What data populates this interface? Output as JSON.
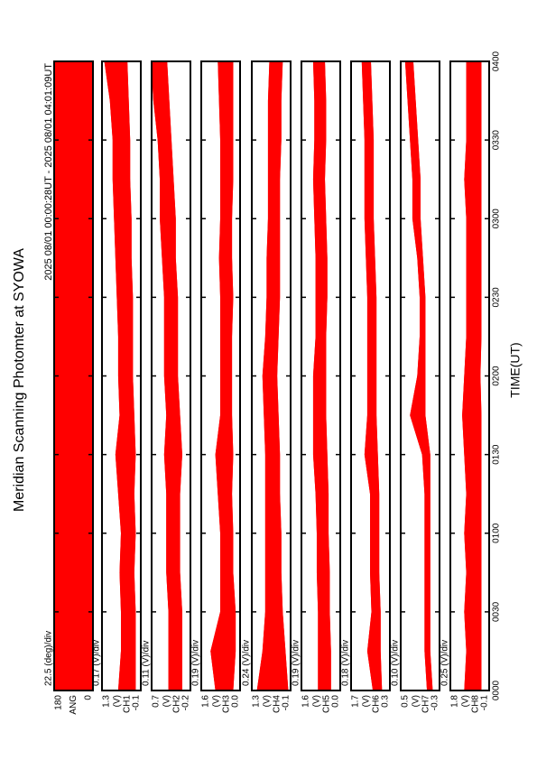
{
  "title": "Meridian Scanning Photomter at SYOWA",
  "subtitle": "2025 08/01 00:00:28UT - 2025 08/01 04:01:09UT",
  "xaxis": {
    "label": "TIME(UT)",
    "xlim": [
      0,
      240
    ],
    "xticks": [
      {
        "value": 0,
        "label": "0000"
      },
      {
        "value": 30,
        "label": "0030"
      },
      {
        "value": 60,
        "label": "0100"
      },
      {
        "value": 90,
        "label": "0130"
      },
      {
        "value": 120,
        "label": "0200"
      },
      {
        "value": 150,
        "label": "0230"
      },
      {
        "value": 180,
        "label": "0300"
      },
      {
        "value": 210,
        "label": "0330"
      },
      {
        "value": 240,
        "label": "0400"
      }
    ]
  },
  "chart_data": [
    {
      "type": "band",
      "ylabel": "ANG",
      "scale_label": "22.5 (deg)/div",
      "color": "#ff0000",
      "ylim": [
        0,
        180
      ],
      "yticks": [
        0,
        180
      ],
      "x": [
        0,
        240
      ],
      "low": [
        0,
        0
      ],
      "high": [
        180,
        180
      ]
    },
    {
      "type": "band",
      "ylabel": "CH1",
      "unit": "(V)",
      "scale_label": "0.17 (V)/div",
      "color": "#ff0000",
      "ylim": [
        -0.1,
        1.3
      ],
      "yticks": [
        -0.1,
        1.3
      ],
      "x": [
        0,
        15,
        30,
        45,
        60,
        75,
        90,
        105,
        120,
        135,
        150,
        165,
        180,
        195,
        210,
        225,
        240
      ],
      "low": [
        0.1,
        0.1,
        0.1,
        0.15,
        0.1,
        0.15,
        0.1,
        0.15,
        0.2,
        0.2,
        0.2,
        0.25,
        0.25,
        0.3,
        0.3,
        0.35,
        0.4
      ],
      "high": [
        0.7,
        0.6,
        0.6,
        0.65,
        0.6,
        0.7,
        0.8,
        0.65,
        0.7,
        0.7,
        0.75,
        0.8,
        0.85,
        0.9,
        0.9,
        1.0,
        1.2
      ]
    },
    {
      "type": "band",
      "ylabel": "CH2",
      "unit": "(V)",
      "scale_label": "0.11 (V)/div",
      "color": "#ff0000",
      "ylim": [
        -0.2,
        0.7
      ],
      "yticks": [
        -0.2,
        0.7
      ],
      "x": [
        0,
        15,
        30,
        45,
        60,
        75,
        90,
        105,
        120,
        135,
        150,
        165,
        180,
        195,
        210,
        225,
        240
      ],
      "low": [
        0.0,
        0.0,
        0.0,
        0.05,
        0.05,
        0.05,
        0.0,
        0.05,
        0.1,
        0.1,
        0.1,
        0.15,
        0.15,
        0.2,
        0.25,
        0.3,
        0.35
      ],
      "high": [
        0.3,
        0.3,
        0.3,
        0.35,
        0.35,
        0.35,
        0.4,
        0.35,
        0.4,
        0.4,
        0.4,
        0.45,
        0.5,
        0.5,
        0.55,
        0.65,
        0.7
      ]
    },
    {
      "type": "band",
      "ylabel": "CH3",
      "unit": "(V)",
      "scale_label": "0.19 (V)/div",
      "color": "#ff0000",
      "ylim": [
        0,
        1.6
      ],
      "yticks": [
        {
          "value": 0,
          "label": "0.0"
        },
        1.6
      ],
      "x": [
        0,
        15,
        30,
        45,
        60,
        75,
        90,
        105,
        120,
        135,
        150,
        165,
        180,
        195,
        210,
        225,
        240
      ],
      "low": [
        0.3,
        0.2,
        0.2,
        0.3,
        0.3,
        0.35,
        0.3,
        0.35,
        0.35,
        0.35,
        0.3,
        0.35,
        0.35,
        0.3,
        0.3,
        0.3,
        0.3
      ],
      "high": [
        1.0,
        1.2,
        0.8,
        0.8,
        0.8,
        0.9,
        1.0,
        0.8,
        0.8,
        0.8,
        0.8,
        0.85,
        0.8,
        0.8,
        0.8,
        0.85,
        0.9
      ]
    },
    {
      "type": "band",
      "ylabel": "CH4",
      "unit": "(V)",
      "scale_label": "0.24 (V)/div",
      "color": "#ff0000",
      "ylim": [
        -0.1,
        1.3
      ],
      "yticks": [
        -0.1,
        1.3
      ],
      "x": [
        0,
        15,
        30,
        45,
        60,
        75,
        90,
        105,
        120,
        135,
        150,
        165,
        180,
        195,
        210,
        225,
        240
      ],
      "low": [
        0.0,
        0.1,
        0.2,
        0.25,
        0.25,
        0.3,
        0.3,
        0.35,
        0.4,
        0.35,
        0.3,
        0.3,
        0.3,
        0.3,
        0.25,
        0.25,
        0.2
      ],
      "high": [
        1.1,
        0.9,
        0.8,
        0.8,
        0.8,
        0.8,
        0.8,
        0.85,
        0.9,
        0.8,
        0.75,
        0.75,
        0.7,
        0.7,
        0.7,
        0.7,
        0.65
      ]
    },
    {
      "type": "band",
      "ylabel": "CH5",
      "unit": "(V)",
      "scale_label": "0.19 (V)/div",
      "color": "#ff0000",
      "ylim": [
        0,
        1.6
      ],
      "yticks": [
        {
          "value": 0,
          "label": "0.0"
        },
        1.6
      ],
      "x": [
        0,
        15,
        30,
        45,
        60,
        75,
        90,
        105,
        120,
        135,
        150,
        165,
        180,
        195,
        210,
        225,
        240
      ],
      "low": [
        0.4,
        0.4,
        0.45,
        0.45,
        0.5,
        0.5,
        0.55,
        0.6,
        0.6,
        0.6,
        0.55,
        0.55,
        0.6,
        0.65,
        0.6,
        0.6,
        0.65
      ],
      "high": [
        0.9,
        0.9,
        0.9,
        0.95,
        0.95,
        1.0,
        1.1,
        1.1,
        1.1,
        1.0,
        1.0,
        1.0,
        1.05,
        1.1,
        1.05,
        1.05,
        1.1
      ]
    },
    {
      "type": "band",
      "ylabel": "CH6",
      "unit": "(V)",
      "scale_label": "0.18 (V)/div",
      "color": "#ff0000",
      "ylim": [
        0.3,
        1.7
      ],
      "yticks": [
        0.3,
        1.7
      ],
      "x": [
        0,
        15,
        30,
        45,
        60,
        75,
        90,
        105,
        120,
        135,
        150,
        165,
        180,
        195,
        210,
        225,
        240
      ],
      "low": [
        0.6,
        0.65,
        0.65,
        0.7,
        0.7,
        0.7,
        0.75,
        0.8,
        0.8,
        0.8,
        0.8,
        0.85,
        0.9,
        0.9,
        0.9,
        0.95,
        1.0
      ],
      "high": [
        0.9,
        1.1,
        0.95,
        1.0,
        1.0,
        1.0,
        1.2,
        1.1,
        1.1,
        1.1,
        1.1,
        1.15,
        1.2,
        1.2,
        1.2,
        1.25,
        1.3
      ]
    },
    {
      "type": "band",
      "ylabel": "CH7",
      "unit": "(V)",
      "scale_label": "0.10 (V)/div",
      "color": "#ff0000",
      "ylim": [
        -0.3,
        0.5
      ],
      "yticks": [
        -0.3,
        0.5
      ],
      "x": [
        0,
        15,
        30,
        45,
        60,
        75,
        90,
        105,
        120,
        135,
        150,
        165,
        180,
        195,
        210,
        225,
        240
      ],
      "low": [
        -0.15,
        -0.1,
        -0.1,
        -0.1,
        -0.1,
        -0.1,
        -0.1,
        0.0,
        0.0,
        0.0,
        0.0,
        0.05,
        0.1,
        0.1,
        0.15,
        0.2,
        0.25
      ],
      "high": [
        -0.05,
        0.0,
        0.0,
        0.0,
        0.0,
        0.0,
        0.05,
        0.3,
        0.15,
        0.1,
        0.1,
        0.15,
        0.25,
        0.25,
        0.3,
        0.35,
        0.4
      ]
    },
    {
      "type": "band",
      "ylabel": "CH8",
      "unit": "(V)",
      "scale_label": "0.25 (V)/div",
      "color": "#ff0000",
      "ylim": [
        -0.1,
        1.8
      ],
      "yticks": [
        -0.1,
        1.8
      ],
      "x": [
        0,
        15,
        30,
        45,
        60,
        75,
        90,
        105,
        120,
        135,
        150,
        165,
        180,
        195,
        210,
        225,
        240
      ],
      "low": [
        0.3,
        0.3,
        0.3,
        0.3,
        0.3,
        0.3,
        0.3,
        0.3,
        0.35,
        0.3,
        0.3,
        0.3,
        0.3,
        0.3,
        0.3,
        0.3,
        0.3
      ],
      "high": [
        1.1,
        1.0,
        1.1,
        1.0,
        1.1,
        1.0,
        1.1,
        1.2,
        1.1,
        1.0,
        1.0,
        1.0,
        1.0,
        1.1,
        1.0,
        1.0,
        1.0
      ]
    }
  ]
}
